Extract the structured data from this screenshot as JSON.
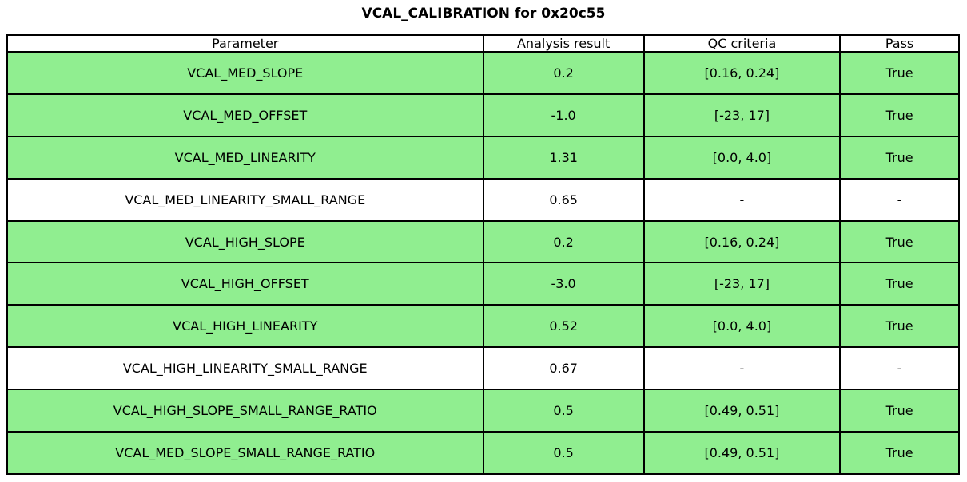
{
  "title": "VCAL_CALIBRATION for 0x20c55",
  "table": {
    "headers": [
      "Parameter",
      "Analysis result",
      "QC criteria",
      "Pass"
    ],
    "rows": [
      {
        "parameter": "VCAL_MED_SLOPE",
        "result": "0.2",
        "criteria": "[0.16, 0.24]",
        "pass": "True",
        "highlight": true
      },
      {
        "parameter": "VCAL_MED_OFFSET",
        "result": "-1.0",
        "criteria": "[-23, 17]",
        "pass": "True",
        "highlight": true
      },
      {
        "parameter": "VCAL_MED_LINEARITY",
        "result": "1.31",
        "criteria": "[0.0, 4.0]",
        "pass": "True",
        "highlight": true
      },
      {
        "parameter": "VCAL_MED_LINEARITY_SMALL_RANGE",
        "result": "0.65",
        "criteria": "-",
        "pass": "-",
        "highlight": false
      },
      {
        "parameter": "VCAL_HIGH_SLOPE",
        "result": "0.2",
        "criteria": "[0.16, 0.24]",
        "pass": "True",
        "highlight": true
      },
      {
        "parameter": "VCAL_HIGH_OFFSET",
        "result": "-3.0",
        "criteria": "[-23, 17]",
        "pass": "True",
        "highlight": true
      },
      {
        "parameter": "VCAL_HIGH_LINEARITY",
        "result": "0.52",
        "criteria": "[0.0, 4.0]",
        "pass": "True",
        "highlight": true
      },
      {
        "parameter": "VCAL_HIGH_LINEARITY_SMALL_RANGE",
        "result": "0.67",
        "criteria": "-",
        "pass": "-",
        "highlight": false
      },
      {
        "parameter": "VCAL_HIGH_SLOPE_SMALL_RANGE_RATIO",
        "result": "0.5",
        "criteria": "[0.49, 0.51]",
        "pass": "True",
        "highlight": true
      },
      {
        "parameter": "VCAL_MED_SLOPE_SMALL_RANGE_RATIO",
        "result": "0.5",
        "criteria": "[0.49, 0.51]",
        "pass": "True",
        "highlight": true
      }
    ]
  },
  "colors": {
    "pass_row_bg": "#90ee90",
    "neutral_row_bg": "#ffffff",
    "border": "#000000"
  },
  "column_widths_pct": [
    50.0,
    16.9,
    20.6,
    12.5
  ]
}
